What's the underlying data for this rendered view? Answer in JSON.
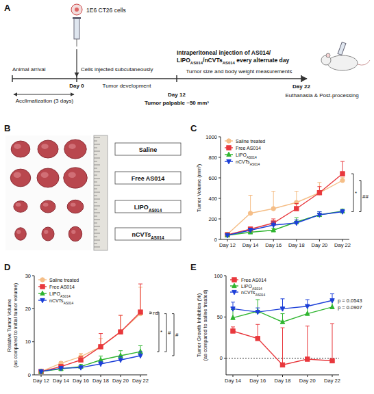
{
  "diagram": {
    "panel": "A",
    "cells": "1E6 CT26 cells",
    "injection": "Cells injected subcutaneously",
    "arrival": "Animal arrival",
    "acclimatization": "Acclimatization (3 days)",
    "day0": "Day 0",
    "development": "Tumor development",
    "day12": "Day 12",
    "palpable": "Tumor palpable ~50 mm³",
    "treatment": [
      "Intraperitoneal injection of AS014/",
      "LIPOAS014/nCVTsAS014 every alternate day"
    ],
    "measurements": "Tumor size and body weight measurements",
    "day22": "Day 22",
    "endpoint": "Euthanasia & Post-processing"
  },
  "photo": {
    "panel": "B",
    "rows": [
      "Saline",
      "Free AS014",
      "LIPOAS014",
      "nCVTsAS014"
    ]
  },
  "chart_data": [
    {
      "panel": "C",
      "type": "line",
      "categories": [
        "Day 12",
        "Day 14",
        "Day 16",
        "Day 18",
        "Day 20",
        "Day 22"
      ],
      "y_label": [
        "Tumor Volume (mm³)"
      ],
      "ylim": [
        0,
        1000
      ],
      "yticks": [
        0,
        200,
        400,
        600,
        800,
        1000
      ],
      "grid": false,
      "legend": "top-left",
      "series": [
        {
          "name": "Saline treated",
          "color": "#f5be87",
          "marker": "circle",
          "values": [
            50,
            255,
            300,
            360,
            455,
            575
          ],
          "errors": [
            20,
            175,
            170,
            110,
            100,
            30
          ]
        },
        {
          "name": "Free AS014",
          "color": "#e8383d",
          "marker": "square",
          "values": [
            45,
            100,
            160,
            300,
            455,
            640
          ],
          "errors": [
            10,
            20,
            40,
            50,
            60,
            120
          ]
        },
        {
          "name": "LIPOAS014",
          "color": "#2fb52f",
          "marker": "triangle",
          "values": [
            40,
            70,
            90,
            170,
            240,
            275
          ],
          "errors": [
            10,
            15,
            20,
            40,
            30,
            20
          ]
        },
        {
          "name": "nCVTsAS014",
          "color": "#1c3fd8",
          "marker": "triangle-down",
          "values": [
            40,
            90,
            140,
            160,
            240,
            270
          ],
          "errors": [
            10,
            20,
            30,
            30,
            30,
            20
          ]
        }
      ],
      "brackets": [
        {
          "label": "*",
          "from": "Free AS014",
          "to": "nCVTsAS014"
        },
        {
          "label": "##",
          "from": "Saline treated",
          "to": "nCVTsAS014"
        }
      ]
    },
    {
      "panel": "D",
      "type": "line",
      "categories": [
        "Day 12",
        "Day 14",
        "Day 16",
        "Day 18",
        "Day 20",
        "Day 22"
      ],
      "y_label": [
        "Relative Tumor Volume",
        "(as compared to initial tumor volume)"
      ],
      "ylim": [
        0,
        30
      ],
      "yticks": [
        0,
        10,
        20,
        30
      ],
      "grid": false,
      "legend": "top-left",
      "series": [
        {
          "name": "Saline treated",
          "color": "#f5be87",
          "marker": "circle",
          "values": [
            1,
            3.5,
            5.5,
            8.5,
            13,
            18.5
          ],
          "errors": [
            0.2,
            0.5,
            1,
            2.5,
            5,
            8
          ]
        },
        {
          "name": "Free AS014",
          "color": "#e8383d",
          "marker": "square",
          "values": [
            1,
            2.5,
            4.5,
            8.5,
            13,
            19
          ],
          "errors": [
            0.2,
            0.5,
            1,
            4,
            5,
            8.5
          ]
        },
        {
          "name": "LIPOAS014",
          "color": "#2fb52f",
          "marker": "triangle",
          "values": [
            1,
            1.8,
            2.5,
            4.5,
            5.8,
            7
          ],
          "errors": [
            0.2,
            0.5,
            0.7,
            1.2,
            1.5,
            1.8
          ]
        },
        {
          "name": "nCVTsAS014",
          "color": "#1c3fd8",
          "marker": "triangle-down",
          "values": [
            1,
            2,
            2.2,
            3.3,
            4.5,
            5.8
          ],
          "errors": [
            0.2,
            0.4,
            0.5,
            0.8,
            1,
            1.2
          ]
        }
      ],
      "brackets": [
        {
          "label": "ns",
          "from": "Saline treated",
          "to": "Free AS014"
        },
        {
          "label": "*",
          "from": "Free AS014",
          "to": "LIPOAS014"
        },
        {
          "label": "#",
          "from": "Saline treated",
          "to": "LIPOAS014"
        },
        {
          "label": "#",
          "from": "Saline treated",
          "to": "nCVTsAS014"
        }
      ]
    },
    {
      "panel": "E",
      "type": "line",
      "categories": [
        "Day 14",
        "Day 16",
        "Day 18",
        "Day 20",
        "Day 22"
      ],
      "y_label": [
        "Tumor Growth Inhibition (%)",
        "(as compared to saline treated)"
      ],
      "ylim": [
        -20,
        100
      ],
      "yticks": [
        0,
        50,
        100
      ],
      "grid": false,
      "legend": "top-left",
      "baseline": 0,
      "series": [
        {
          "name": "Free AS014",
          "color": "#e8383d",
          "marker": "square",
          "values": [
            33,
            24,
            -8,
            -1,
            -3
          ],
          "errors": [
            5,
            17,
            45,
            40,
            45
          ]
        },
        {
          "name": "LIPOAS014",
          "color": "#2fb52f",
          "marker": "triangle",
          "values": [
            49,
            57,
            44,
            54,
            62
          ],
          "errors": [
            10,
            14,
            10,
            10,
            8
          ]
        },
        {
          "name": "nCVTsAS014",
          "color": "#1c3fd8",
          "marker": "triangle-down",
          "values": [
            60,
            56,
            60,
            63,
            70
          ],
          "errors": [
            8,
            5,
            12,
            8,
            8
          ]
        }
      ],
      "annotations": [
        {
          "text": "p = 0.0543",
          "series": "nCVTsAS014"
        },
        {
          "text": "p = 0.0907",
          "series": "LIPOAS014"
        }
      ]
    }
  ]
}
